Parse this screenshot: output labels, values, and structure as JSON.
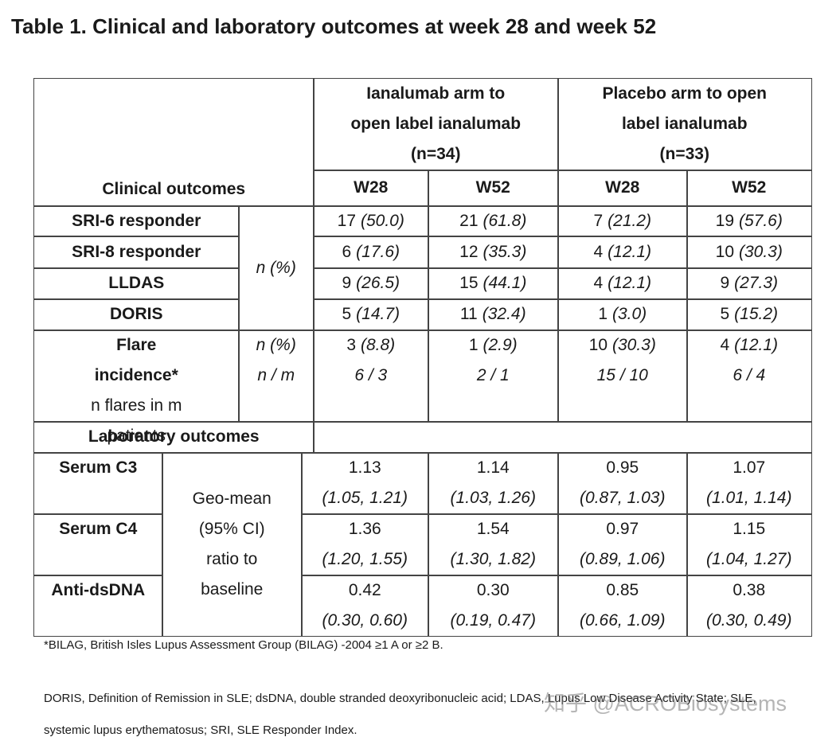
{
  "title": "Table 1. Clinical and laboratory outcomes at week 28 and week 52",
  "table": {
    "clinical_header": "Clinical outcomes",
    "arms": [
      {
        "label": "Ianalumab arm to open label ianalumab",
        "n": "(n=34)"
      },
      {
        "label": "Placebo arm to open label ianalumab",
        "n": "(n=33)"
      }
    ],
    "weeks": [
      "W28",
      "W52",
      "W28",
      "W52"
    ],
    "stat_label": "n (%)",
    "clinical_rows": [
      {
        "label": "SRI-6 responder",
        "cells": [
          {
            "n": "17",
            "pct": "(50.0)"
          },
          {
            "n": "21",
            "pct": "(61.8)"
          },
          {
            "n": "7",
            "pct": "(21.2)"
          },
          {
            "n": "19",
            "pct": "(57.6)"
          }
        ]
      },
      {
        "label": "SRI-8 responder",
        "cells": [
          {
            "n": "6",
            "pct": "(17.6)"
          },
          {
            "n": "12",
            "pct": "(35.3)"
          },
          {
            "n": "4",
            "pct": "(12.1)"
          },
          {
            "n": "10",
            "pct": "(30.3)"
          }
        ]
      },
      {
        "label": "LLDAS",
        "cells": [
          {
            "n": "9",
            "pct": "(26.5)"
          },
          {
            "n": "15",
            "pct": "(44.1)"
          },
          {
            "n": "4",
            "pct": "(12.1)"
          },
          {
            "n": "9",
            "pct": "(27.3)"
          }
        ]
      },
      {
        "label": "DORIS",
        "cells": [
          {
            "n": "5",
            "pct": "(14.7)"
          },
          {
            "n": "11",
            "pct": "(32.4)"
          },
          {
            "n": "1",
            "pct": "(3.0)"
          },
          {
            "n": "5",
            "pct": "(15.2)"
          }
        ]
      }
    ],
    "flare": {
      "label": "Flare incidence*",
      "sublabel": "n flares in m patients",
      "stat": "n (%)",
      "stat2": "n / m",
      "cells": [
        {
          "n": "3",
          "pct": "(8.8)",
          "ratio": "6 / 3"
        },
        {
          "n": "1",
          "pct": "(2.9)",
          "ratio": "2 / 1"
        },
        {
          "n": "10",
          "pct": "(30.3)",
          "ratio": "15 / 10"
        },
        {
          "n": "4",
          "pct": "(12.1)",
          "ratio": "6 / 4"
        }
      ]
    },
    "lab_header": "Laboratory outcomes",
    "lab_stat": "Geo-mean (95% CI) ratio to baseline",
    "lab_rows": [
      {
        "label": "Serum C3",
        "cells": [
          {
            "value": "1.13",
            "ci": "(1.05, 1.21)"
          },
          {
            "value": "1.14",
            "ci": "(1.03, 1.26)"
          },
          {
            "value": "0.95",
            "ci": "(0.87, 1.03)"
          },
          {
            "value": "1.07",
            "ci": "(1.01, 1.14)"
          }
        ]
      },
      {
        "label": "Serum C4",
        "cells": [
          {
            "value": "1.36",
            "ci": "(1.20, 1.55)"
          },
          {
            "value": "1.54",
            "ci": "(1.30, 1.82)"
          },
          {
            "value": "0.97",
            "ci": "(0.89, 1.06)"
          },
          {
            "value": "1.15",
            "ci": "(1.04, 1.27)"
          }
        ]
      },
      {
        "label": "Anti-dsDNA",
        "cells": [
          {
            "value": "0.42",
            "ci": "(0.30, 0.60)"
          },
          {
            "value": "0.30",
            "ci": "(0.19, 0.47)"
          },
          {
            "value": "0.85",
            "ci": "(0.66, 1.09)"
          },
          {
            "value": "0.38",
            "ci": "(0.30, 0.49)"
          }
        ]
      }
    ]
  },
  "footnotes": [
    "*BILAG, British Isles Lupus Assessment Group (BILAG) -2004 ≥1 A or ≥2 B.",
    "DORIS, Definition of Remission in SLE; dsDNA, double stranded deoxyribonucleic acid; LDAS, Lupus Low Disease Activity State; SLE, systemic lupus erythematosus; SRI, SLE Responder Index."
  ],
  "watermark": "知乎 @ACROBiosystems"
}
